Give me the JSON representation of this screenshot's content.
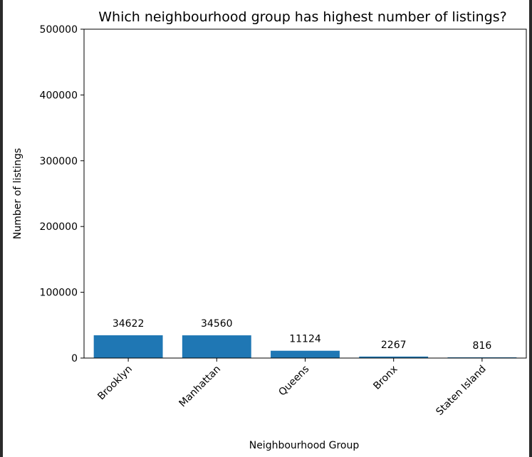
{
  "chart_data": {
    "type": "bar",
    "title": "Which neighbourhood group has highest number of listings?",
    "xlabel": "Neighbourhood Group",
    "ylabel": "Number of listings",
    "categories": [
      "Brooklyn",
      "Manhattan",
      "Queens",
      "Bronx",
      "Staten Island"
    ],
    "values": [
      34622,
      34560,
      11124,
      2267,
      816
    ],
    "data_labels": [
      "34622",
      "34560",
      "11124",
      "2267",
      "816"
    ],
    "ylim": [
      0,
      500000
    ],
    "yticks": [
      0,
      100000,
      200000,
      300000,
      400000,
      500000
    ],
    "ytick_labels": [
      "0",
      "100000",
      "200000",
      "300000",
      "400000",
      "500000"
    ],
    "bar_color": "#1f77b4",
    "grid": false,
    "legend": "none"
  }
}
